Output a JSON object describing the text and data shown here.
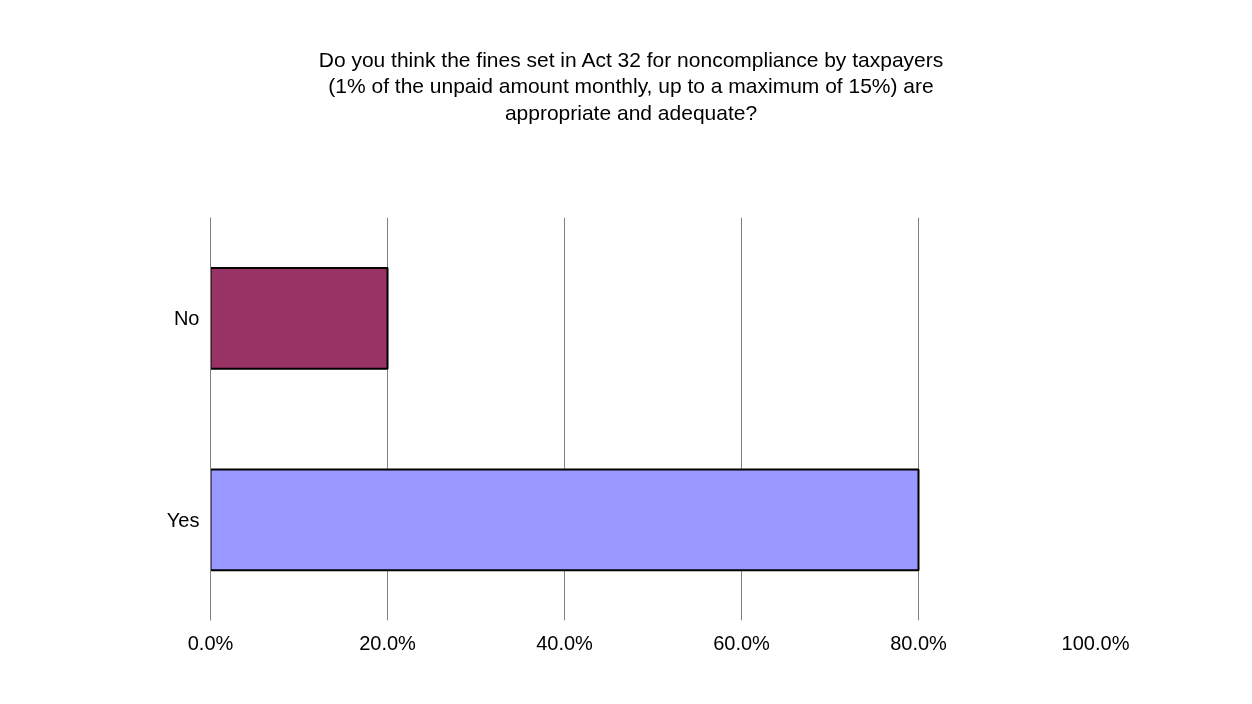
{
  "chart_data": {
    "type": "bar",
    "orientation": "horizontal",
    "title": "Do you think the fines set in Act 32 for noncompliance by taxpayers (1% of the unpaid amount monthly, up to a maximum of 15%) are appropriate and adequate?",
    "categories": [
      "No",
      "Yes"
    ],
    "values": [
      20,
      80
    ],
    "colors": [
      "#993366",
      "#9999ff"
    ],
    "xlim": [
      0,
      100
    ],
    "xticks": [
      {
        "value": 0,
        "label": "0.0%"
      },
      {
        "value": 20,
        "label": "20.0%"
      },
      {
        "value": 40,
        "label": "40.0%"
      },
      {
        "value": 60,
        "label": "60.0%"
      },
      {
        "value": 80,
        "label": "80.0%"
      },
      {
        "value": 100,
        "label": "100.0%"
      }
    ],
    "grid": "x"
  }
}
